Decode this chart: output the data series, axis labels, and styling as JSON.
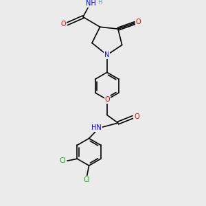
{
  "background_color": "#ebebeb",
  "bond_color": "#000000",
  "N_color": "#0000ff",
  "O_color": "#ff0000",
  "Cl_color": "#00aa00",
  "H_color": "#4a9a9a",
  "figsize": [
    3.0,
    3.0
  ],
  "dpi": 100,
  "xlim": [
    0,
    10
  ],
  "ylim": [
    0,
    10
  ]
}
